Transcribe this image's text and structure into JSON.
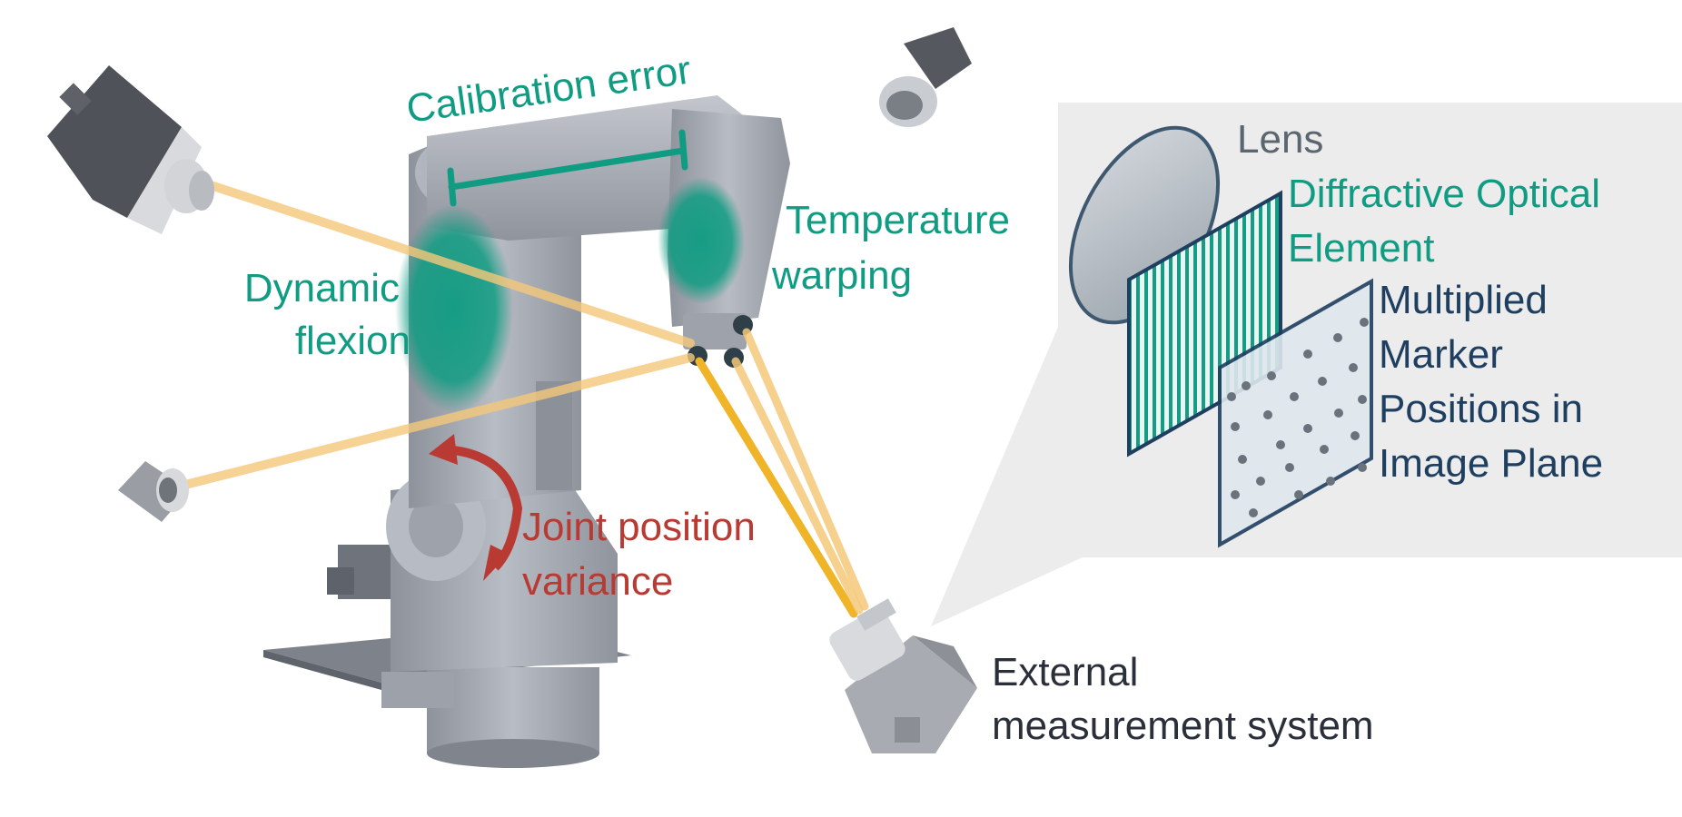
{
  "labels": {
    "calibration_error": "Calibration error",
    "dynamic_line1": "Dynamic",
    "dynamic_line2": "flexion",
    "temperature_line1": "Temperature",
    "temperature_line2": "warping",
    "joint_line1": "Joint position",
    "joint_line2": "variance",
    "external_line1": "External",
    "external_line2": "measurement system",
    "lens": "Lens",
    "doe_line1": "Diffractive Optical",
    "doe_line2": "Element",
    "marker_line1": "Multiplied",
    "marker_line2": "Marker",
    "marker_line3": "Positions in",
    "marker_line4": "Image Plane"
  },
  "colors": {
    "teal": "#0f9c82",
    "red": "#b83a32",
    "navy": "#1e3f60",
    "dark_text": "#2b2f3a",
    "lens_text": "#5b6670",
    "beam": "#f0b429",
    "beam_light": "#f5c87a",
    "robot": "#a9adb6",
    "panel_bg": "#ececec"
  },
  "icons": {
    "robot": "industrial-robot-arm",
    "camera": "camera-icon",
    "arrow": "curved-arrow-icon"
  }
}
